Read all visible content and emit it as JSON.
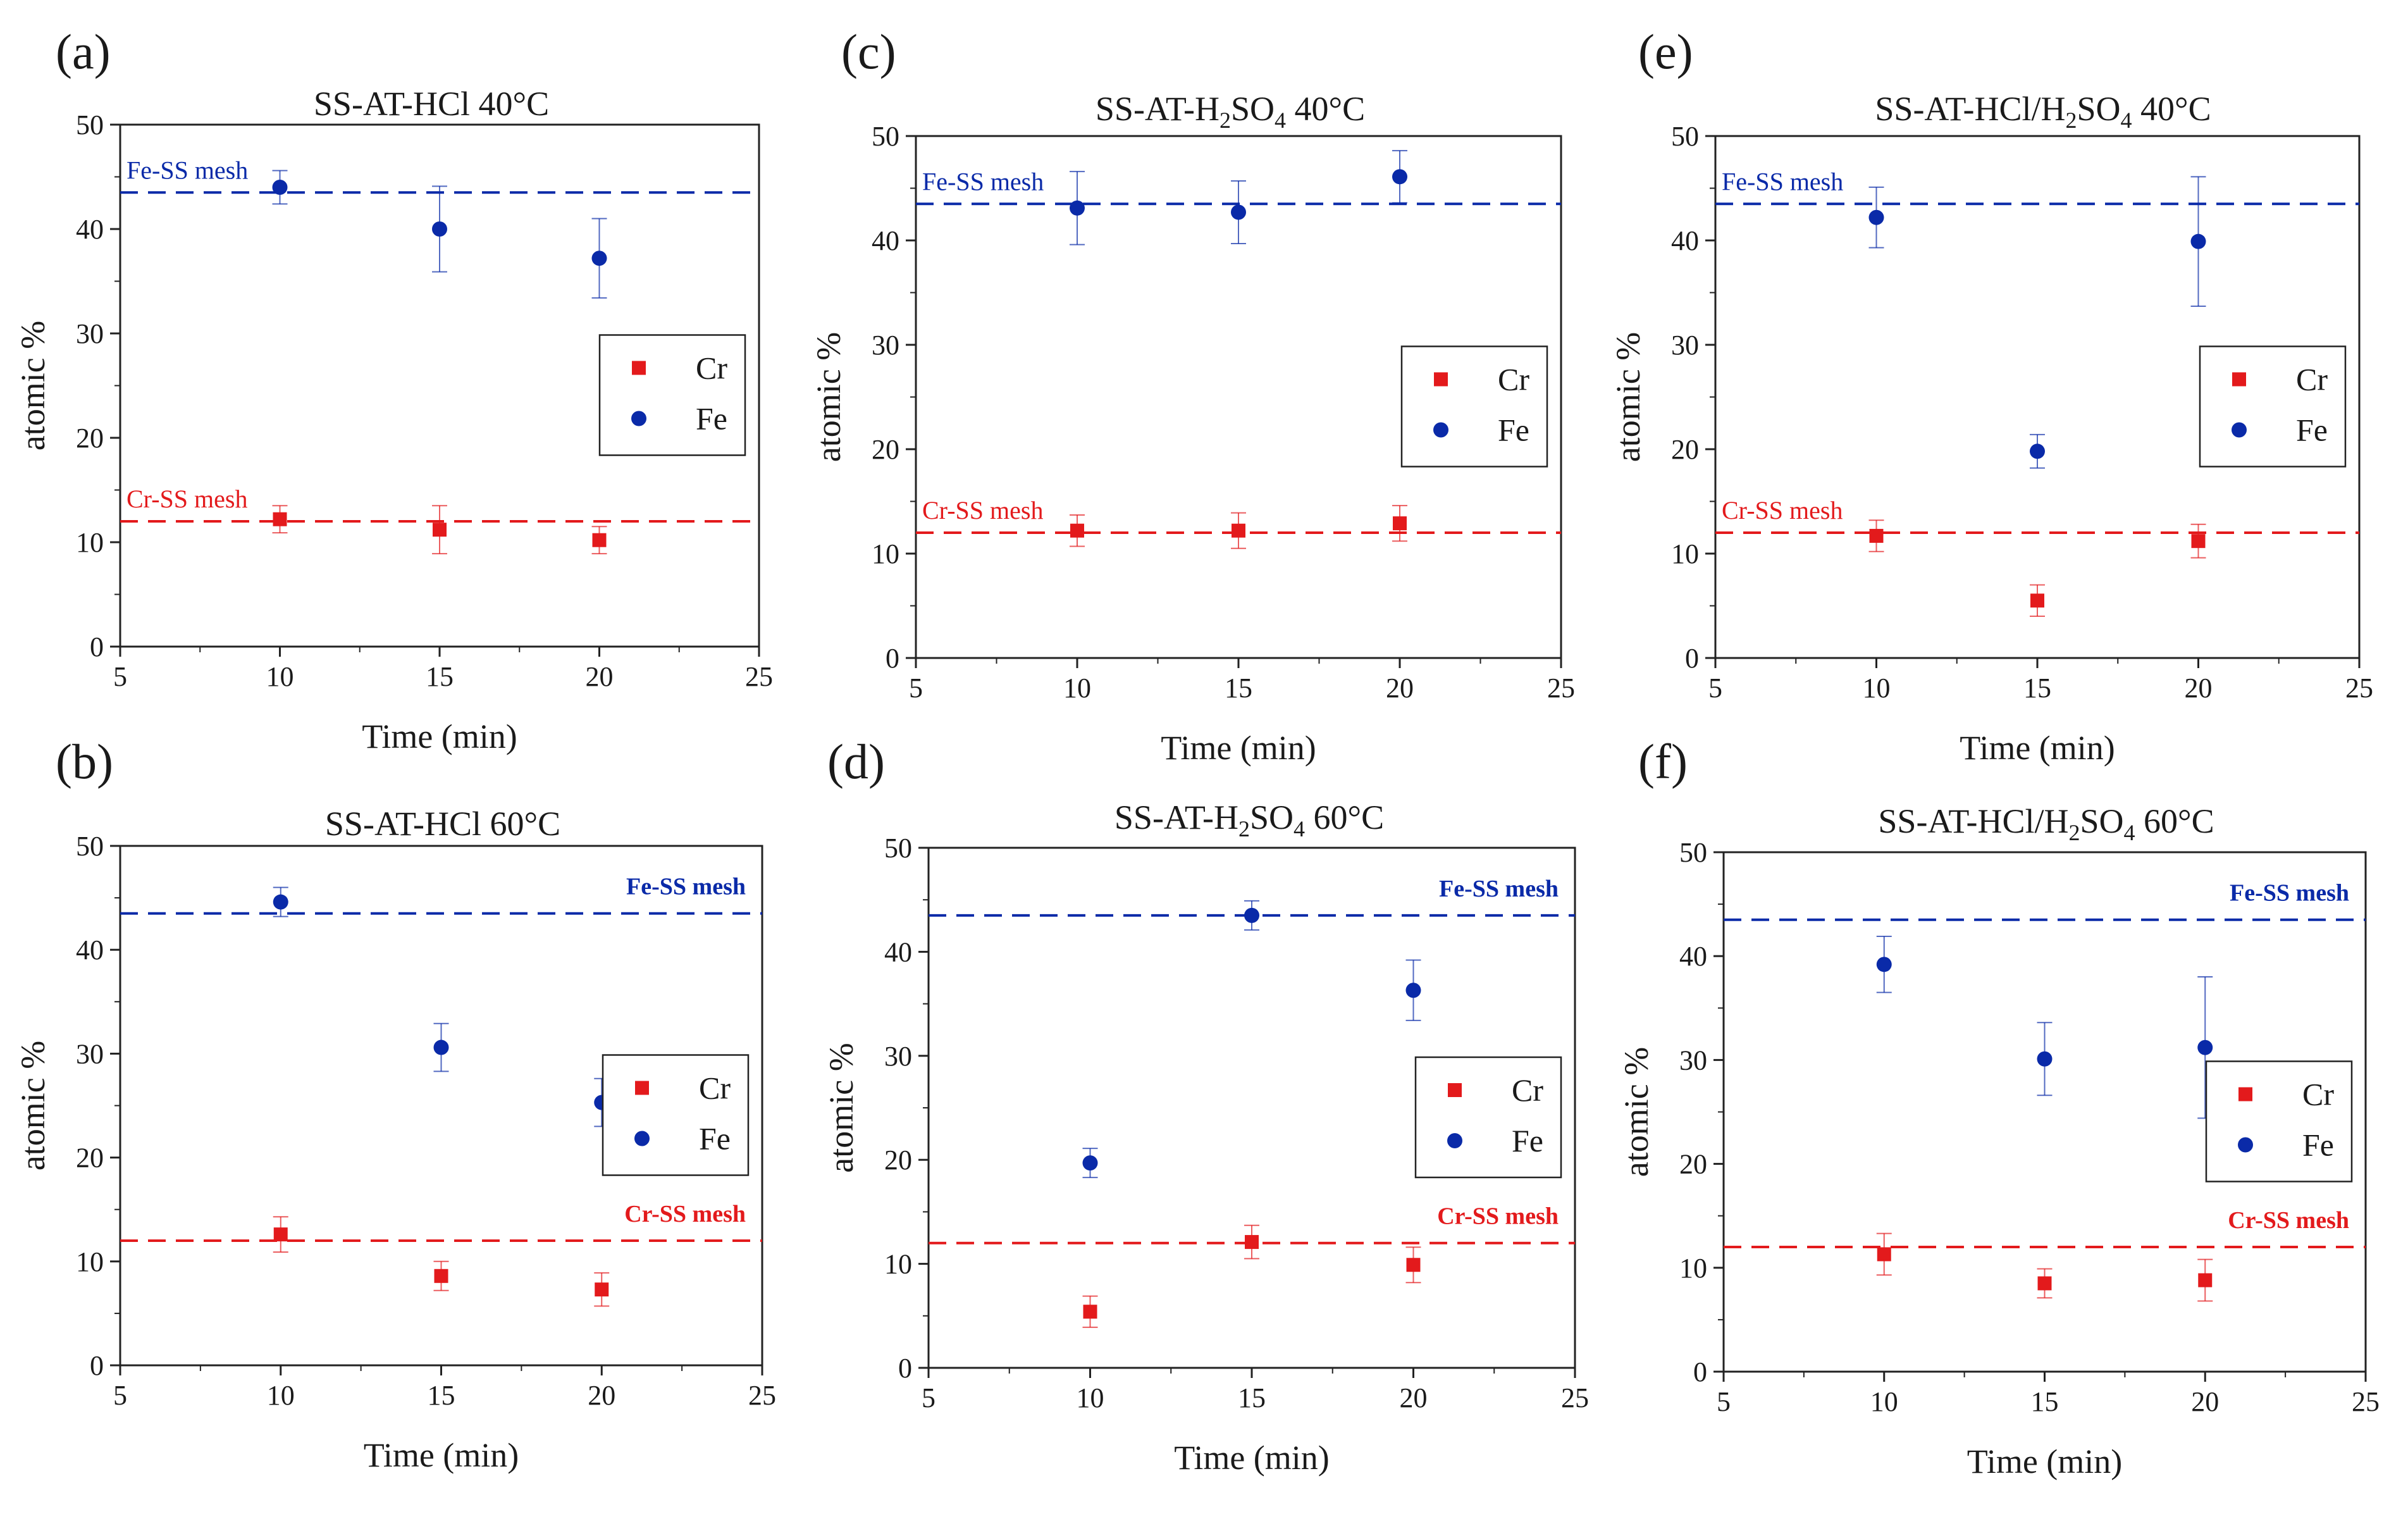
{
  "colors": {
    "Cr": "#e31a1c",
    "Fe": "#0a2aa8",
    "axis": "#222222"
  },
  "chart_data": [
    {
      "letter": "(a)",
      "type": "scatter",
      "title": {
        "pre": "SS-AT-HCl 40°C",
        "sub": "",
        "post": ""
      },
      "xlabel": "Time (min)",
      "ylabel": "atomic %",
      "xlim": [
        5,
        25
      ],
      "ylim": [
        0,
        50
      ],
      "xticks": [
        5,
        10,
        15,
        20,
        25
      ],
      "yticks": [
        0,
        10,
        20,
        30,
        40,
        50
      ],
      "legend": [
        "Cr",
        "Fe"
      ],
      "legend_position": "right-middle",
      "ref_style": "left",
      "reference_lines": [
        {
          "name": "Fe-SS mesh",
          "y": 43.5,
          "series": "Fe"
        },
        {
          "name": "Cr-SS mesh",
          "y": 12.0,
          "series": "Cr"
        }
      ],
      "series": [
        {
          "name": "Cr",
          "x": [
            10,
            15,
            20
          ],
          "y": [
            12.2,
            11.2,
            10.2
          ],
          "err": [
            1.3,
            2.3,
            1.3
          ]
        },
        {
          "name": "Fe",
          "x": [
            10,
            15,
            20
          ],
          "y": [
            44.0,
            40.0,
            37.2
          ],
          "err": [
            1.6,
            4.1,
            3.8
          ]
        }
      ]
    },
    {
      "letter": "(c)",
      "type": "scatter",
      "title": {
        "pre": "SS-AT-H",
        "sub": "2",
        "post": "SO4 40°C"
      },
      "xlabel": "Time (min)",
      "ylabel": "atomic %",
      "xlim": [
        5,
        25
      ],
      "ylim": [
        0,
        50
      ],
      "xticks": [
        5,
        10,
        15,
        20,
        25
      ],
      "yticks": [
        0,
        10,
        20,
        30,
        40,
        50
      ],
      "legend": [
        "Cr",
        "Fe"
      ],
      "legend_position": "right-middle",
      "ref_style": "left",
      "reference_lines": [
        {
          "name": "Fe-SS mesh",
          "y": 43.5,
          "series": "Fe"
        },
        {
          "name": "Cr-SS mesh",
          "y": 12.0,
          "series": "Cr"
        }
      ],
      "series": [
        {
          "name": "Cr",
          "x": [
            10,
            15,
            20
          ],
          "y": [
            12.2,
            12.2,
            12.9
          ],
          "err": [
            1.5,
            1.7,
            1.7
          ]
        },
        {
          "name": "Fe",
          "x": [
            10,
            15,
            20
          ],
          "y": [
            43.1,
            42.7,
            46.1
          ],
          "err": [
            3.5,
            3.0,
            2.5
          ]
        }
      ]
    },
    {
      "letter": "(e)",
      "type": "scatter",
      "title": {
        "pre": "SS-AT-HCl/H",
        "sub": "2",
        "post": "SO4 40°C"
      },
      "xlabel": "Time (min)",
      "ylabel": "atomic %",
      "xlim": [
        5,
        25
      ],
      "ylim": [
        0,
        50
      ],
      "xticks": [
        5,
        10,
        15,
        20,
        25
      ],
      "yticks": [
        0,
        10,
        20,
        30,
        40,
        50
      ],
      "legend": [
        "Cr",
        "Fe"
      ],
      "legend_position": "right-middle",
      "ref_style": "left",
      "reference_lines": [
        {
          "name": "Fe-SS mesh",
          "y": 43.5,
          "series": "Fe"
        },
        {
          "name": "Cr-SS mesh",
          "y": 12.0,
          "series": "Cr"
        }
      ],
      "series": [
        {
          "name": "Cr",
          "x": [
            10,
            15,
            20
          ],
          "y": [
            11.7,
            5.5,
            11.2
          ],
          "err": [
            1.5,
            1.5,
            1.6
          ]
        },
        {
          "name": "Fe",
          "x": [
            10,
            15,
            20
          ],
          "y": [
            42.2,
            19.8,
            39.9
          ],
          "err": [
            2.9,
            1.6,
            6.2
          ]
        }
      ]
    },
    {
      "letter": "(b)",
      "type": "scatter",
      "title": {
        "pre": "SS-AT-HCl 60°C",
        "sub": "",
        "post": ""
      },
      "xlabel": "Time (min)",
      "ylabel": "atomic %",
      "xlim": [
        5,
        25
      ],
      "ylim": [
        0,
        50
      ],
      "xticks": [
        5,
        10,
        15,
        20,
        25
      ],
      "yticks": [
        0,
        10,
        20,
        30,
        40,
        50
      ],
      "legend": [
        "Cr",
        "Fe"
      ],
      "legend_position": "right-middle",
      "ref_style": "right",
      "reference_lines": [
        {
          "name": "Fe-SS mesh",
          "y": 43.5,
          "series": "Fe"
        },
        {
          "name": "Cr-SS mesh",
          "y": 12.0,
          "series": "Cr"
        }
      ],
      "series": [
        {
          "name": "Cr",
          "x": [
            10,
            15,
            20
          ],
          "y": [
            12.6,
            8.6,
            7.3
          ],
          "err": [
            1.7,
            1.4,
            1.6
          ]
        },
        {
          "name": "Fe",
          "x": [
            10,
            15,
            20
          ],
          "y": [
            44.6,
            30.6,
            25.3
          ],
          "err": [
            1.4,
            2.3,
            2.3
          ]
        }
      ]
    },
    {
      "letter": "(d)",
      "type": "scatter",
      "title": {
        "pre": "SS-AT-H",
        "sub": "2",
        "post": "SO4 60°C"
      },
      "xlabel": "Time (min)",
      "ylabel": "atomic %",
      "xlim": [
        5,
        25
      ],
      "ylim": [
        0,
        50
      ],
      "xticks": [
        5,
        10,
        15,
        20,
        25
      ],
      "yticks": [
        0,
        10,
        20,
        30,
        40,
        50
      ],
      "legend": [
        "Cr",
        "Fe"
      ],
      "legend_position": "right-middle",
      "ref_style": "right",
      "reference_lines": [
        {
          "name": "Fe-SS mesh",
          "y": 43.5,
          "series": "Fe"
        },
        {
          "name": "Cr-SS mesh",
          "y": 12.0,
          "series": "Cr"
        }
      ],
      "series": [
        {
          "name": "Cr",
          "x": [
            10,
            15,
            20
          ],
          "y": [
            5.4,
            12.1,
            9.9
          ],
          "err": [
            1.5,
            1.6,
            1.7
          ]
        },
        {
          "name": "Fe",
          "x": [
            10,
            15,
            20
          ],
          "y": [
            19.7,
            43.5,
            36.3
          ],
          "err": [
            1.4,
            1.4,
            2.9
          ]
        }
      ]
    },
    {
      "letter": "(f)",
      "type": "scatter",
      "title": {
        "pre": "SS-AT-HCl/H",
        "sub": "2",
        "post": "SO4 60°C"
      },
      "xlabel": "Time (min)",
      "ylabel": "atomic %",
      "xlim": [
        5,
        25
      ],
      "ylim": [
        0,
        50
      ],
      "xticks": [
        5,
        10,
        15,
        20,
        25
      ],
      "yticks": [
        0,
        10,
        20,
        30,
        40,
        50
      ],
      "legend": [
        "Cr",
        "Fe"
      ],
      "legend_position": "right-middle",
      "ref_style": "right",
      "reference_lines": [
        {
          "name": "Fe-SS mesh",
          "y": 43.5,
          "series": "Fe"
        },
        {
          "name": "Cr-SS mesh",
          "y": 12.0,
          "series": "Cr"
        }
      ],
      "series": [
        {
          "name": "Cr",
          "x": [
            10,
            15,
            20
          ],
          "y": [
            11.3,
            8.5,
            8.8
          ],
          "err": [
            2.0,
            1.4,
            2.0
          ]
        },
        {
          "name": "Fe",
          "x": [
            10,
            15,
            20
          ],
          "y": [
            39.2,
            30.1,
            31.2
          ],
          "err": [
            2.7,
            3.5,
            6.8
          ]
        }
      ]
    }
  ]
}
